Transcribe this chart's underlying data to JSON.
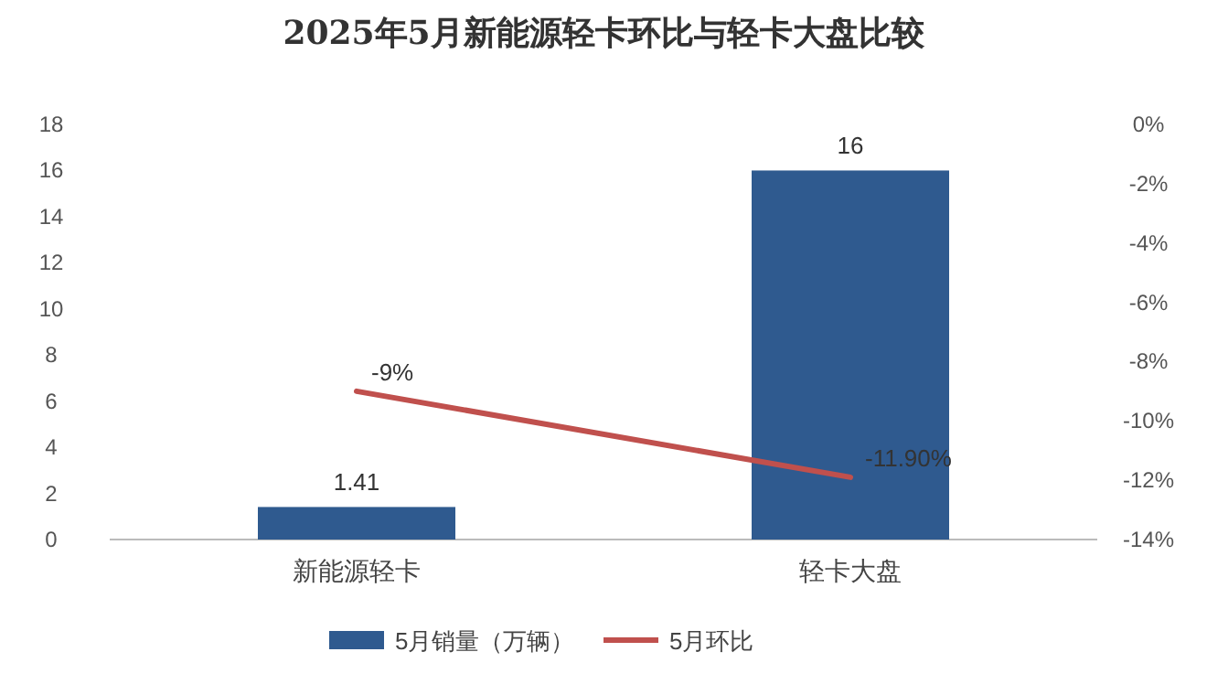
{
  "chart_data": {
    "type": "bar",
    "title": "2025年5月新能源轻卡环比与轻卡大盘比较",
    "categories": [
      "新能源轻卡",
      "轻卡大盘"
    ],
    "series": [
      {
        "name": "5月销量（万辆）",
        "color": "#2f5a8f",
        "values": [
          1.41,
          16
        ],
        "value_labels": [
          "1.41",
          "16"
        ]
      },
      {
        "name": "5月环比",
        "type": "line",
        "axis": "y2",
        "color": "#c0504d",
        "values": [
          -9,
          -11.9
        ],
        "value_labels": [
          "-9%",
          "-11.90%"
        ]
      }
    ],
    "ylim": [
      0,
      18
    ],
    "yticks": [
      0,
      2,
      4,
      6,
      8,
      10,
      12,
      14,
      16,
      18
    ],
    "y2lim": [
      -14,
      0
    ],
    "y2ticks": [
      {
        "value": 0,
        "label": "0%"
      },
      {
        "value": -2,
        "label": "-2%"
      },
      {
        "value": -4,
        "label": "-4%"
      },
      {
        "value": -6,
        "label": "-6%"
      },
      {
        "value": -8,
        "label": "-8%"
      },
      {
        "value": -10,
        "label": "-10%"
      },
      {
        "value": -12,
        "label": "-12%"
      },
      {
        "value": -14,
        "label": "-14%"
      }
    ],
    "grid": false,
    "legend": "bottom",
    "marker": "none",
    "line_style": "solid"
  }
}
